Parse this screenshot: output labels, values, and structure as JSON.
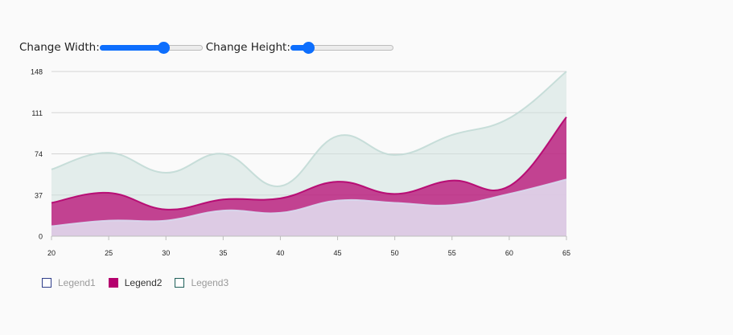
{
  "controls": {
    "width_label": "Change Width:",
    "height_label": "Change Height:",
    "width_slider_value": 0.62,
    "height_slider_value": 0.17
  },
  "chart_data": {
    "type": "area",
    "stacked": false,
    "x": [
      20,
      25,
      30,
      35,
      40,
      45,
      50,
      55,
      60,
      65
    ],
    "yticks": [
      0,
      37,
      74,
      111,
      148
    ],
    "xticks": [
      20,
      25,
      30,
      35,
      40,
      45,
      50,
      55,
      60,
      65
    ],
    "ylim": [
      0,
      148
    ],
    "xlim": [
      20,
      65
    ],
    "grid": true,
    "legend_position": "bottom-left",
    "series": [
      {
        "name": "Legend3",
        "color": "#cfe1df",
        "stroke": "#c2dad6",
        "values": [
          60,
          75,
          57,
          74,
          45,
          90,
          73,
          91,
          106,
          148
        ]
      },
      {
        "name": "Legend2",
        "color": "#b5006e",
        "stroke": "#b5006e",
        "values": [
          30,
          39,
          24,
          33,
          34,
          49,
          38,
          50,
          45,
          107
        ]
      },
      {
        "name": "Legend1",
        "color": "#e2e3f2",
        "stroke": "#d8d9ee",
        "values": [
          9,
          14,
          14,
          23,
          21,
          32,
          30,
          28,
          38,
          51
        ]
      }
    ]
  },
  "legend": [
    {
      "label": "Legend1",
      "swatch_border": "#2f3f8a",
      "swatch_fill": "#ffffff",
      "text_color": "#9a9a9a"
    },
    {
      "label": "Legend2",
      "swatch_border": "#b5006e",
      "swatch_fill": "#b5006e",
      "text_color": "#333333"
    },
    {
      "label": "Legend3",
      "swatch_border": "#1f5f59",
      "swatch_fill": "#ffffff",
      "text_color": "#9a9a9a"
    }
  ]
}
